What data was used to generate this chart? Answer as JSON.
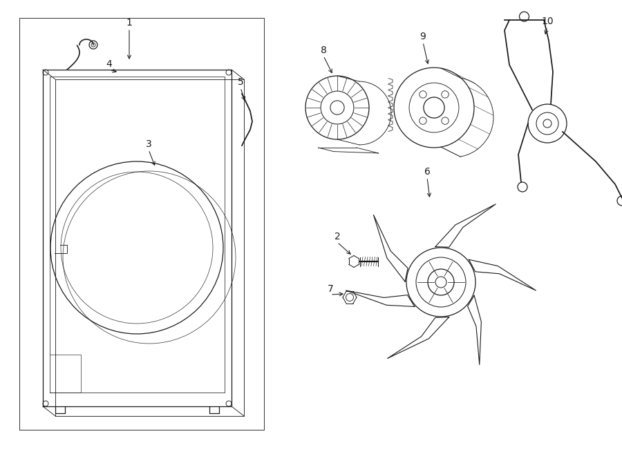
{
  "bg_color": "#ffffff",
  "line_color": "#1a1a1a",
  "lw": 0.9,
  "fig_width": 9.0,
  "fig_height": 6.61,
  "dpi": 100
}
